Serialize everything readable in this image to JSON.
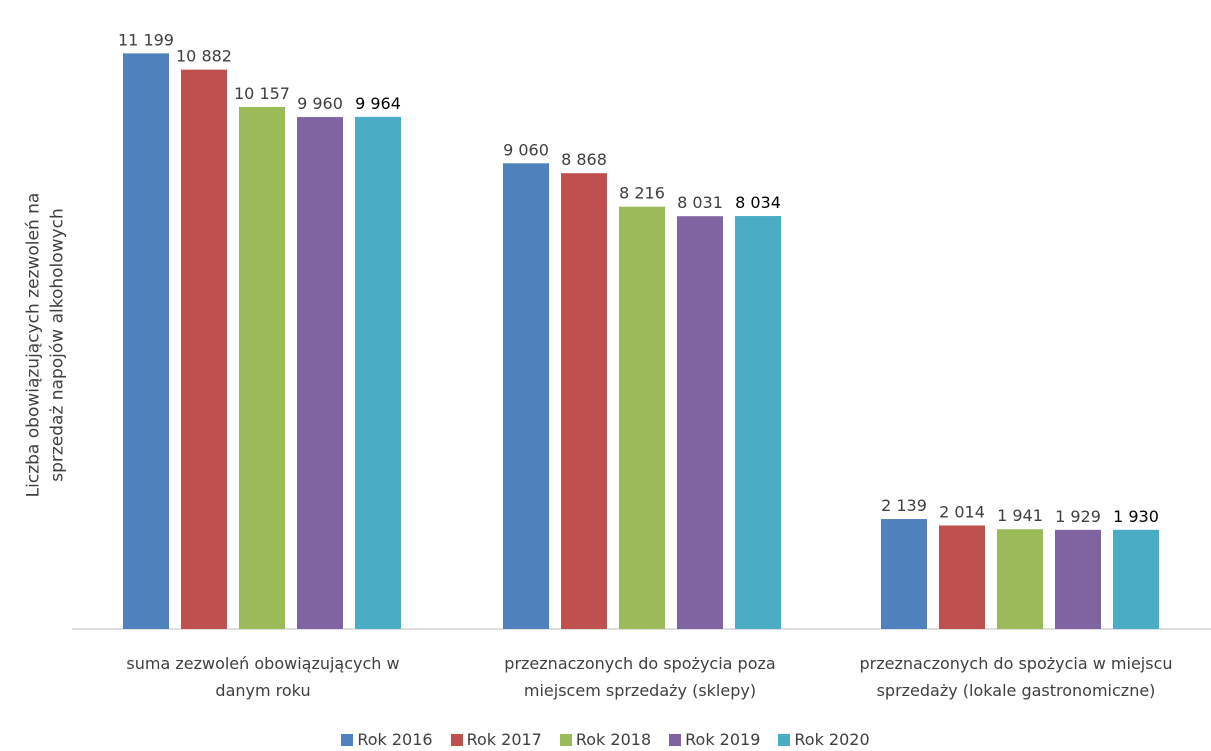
{
  "chart_data": {
    "type": "bar",
    "title": "",
    "ylabel_lines": [
      "Liczba obowiązujących zezwoleń na",
      "sprzedaż napojów alkoholowych"
    ],
    "xlabel": "",
    "categories": [
      [
        "suma zezwoleń obowiązujących w",
        "danym roku"
      ],
      [
        "przeznaczonych do spożycia poza",
        "miejscem sprzedaży (sklepy)"
      ],
      [
        "przeznaczonych do spożycia w miejscu",
        "sprzedaży (lokale gastronomiczne)"
      ]
    ],
    "series": [
      {
        "name": "Rok 2016",
        "color": "#4F81BD",
        "values": [
          11199,
          9060,
          2139
        ],
        "labels": [
          "11 199",
          "9 060",
          "2 139"
        ]
      },
      {
        "name": "Rok 2017",
        "color": "#C0504D",
        "values": [
          10882,
          8868,
          2014
        ],
        "labels": [
          "10 882",
          "8 868",
          "2 014"
        ]
      },
      {
        "name": "Rok 2018",
        "color": "#9BBB59",
        "values": [
          10157,
          8216,
          1941
        ],
        "labels": [
          "10 157",
          "8 216",
          "1 941"
        ]
      },
      {
        "name": "Rok 2019",
        "color": "#8064A2",
        "values": [
          9960,
          8031,
          1929
        ],
        "labels": [
          "9 960",
          "8 031",
          "1 929"
        ]
      },
      {
        "name": "Rok 2020",
        "color": "#4BACC6",
        "values": [
          9964,
          8034,
          1930
        ],
        "labels": [
          "9 964",
          "8 034",
          "1 930"
        ]
      }
    ],
    "ylim": [
      0,
      12000
    ],
    "grid": false,
    "legend_position": "bottom",
    "data_labels": true
  }
}
